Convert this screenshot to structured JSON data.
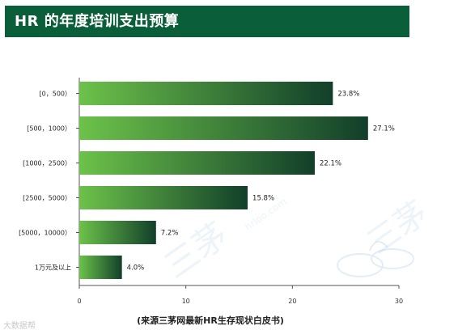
{
  "title": "HR 的年度培训支出预算",
  "source": "(来源三茅网最新HR生存现状白皮书)",
  "corner_mark": "大数据帮",
  "watermark": {
    "brand": "三茅",
    "site": "hrloo.com"
  },
  "colors": {
    "title_bg": "#0a5f3a",
    "bar_light": "#6cc24a",
    "bar_dark": "#123f2a"
  },
  "chart_data": {
    "type": "bar",
    "orientation": "horizontal",
    "categories": [
      "[0，500）",
      "[500，1000）",
      "[1000，2500）",
      "[2500，5000）",
      "[5000，10000）",
      "1万元及以上"
    ],
    "values": [
      23.8,
      27.1,
      22.1,
      15.8,
      7.2,
      4.0
    ],
    "value_labels": [
      "23.8%",
      "27.1%",
      "22.1%",
      "15.8%",
      "7.2%",
      "4.0%"
    ],
    "x_ticks": [
      0,
      10,
      20,
      30
    ],
    "xlim": [
      0,
      30
    ],
    "grid": false
  }
}
